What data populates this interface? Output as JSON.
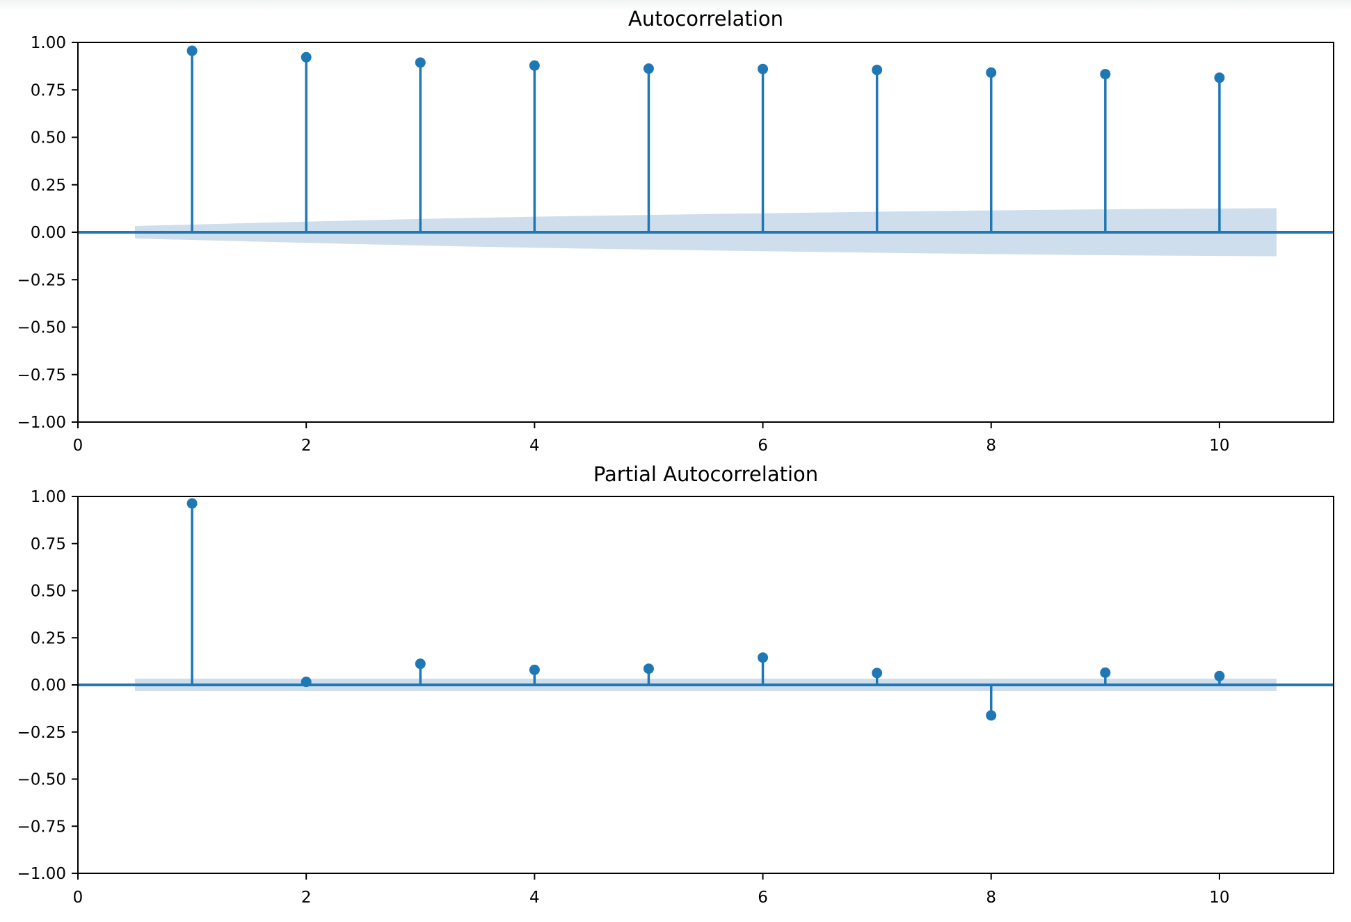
{
  "figure": {
    "background": "#ffffff",
    "kind": "matplotlib correlogram figure, two stacked subplots"
  },
  "style": {
    "stem_color": "#1f77b4",
    "dot_color": "#1f77b4",
    "zero_line_color": "#1f77b4",
    "band_color": "#cfdeed",
    "axis_color": "#000000",
    "text_color": "#000000"
  },
  "chart_data": [
    {
      "type": "stem",
      "title": "Autocorrelation",
      "xlabel": "",
      "ylabel": "",
      "x": [
        1,
        2,
        3,
        4,
        5,
        6,
        7,
        8,
        9,
        10
      ],
      "values": [
        0.956,
        0.922,
        0.894,
        0.878,
        0.862,
        0.86,
        0.855,
        0.841,
        0.833,
        0.814
      ],
      "conf_band": {
        "x": [
          0.5,
          2,
          3,
          4,
          5,
          6,
          7,
          8,
          9,
          10.5
        ],
        "upper": [
          0.033,
          0.056,
          0.07,
          0.082,
          0.091,
          0.1,
          0.108,
          0.115,
          0.121,
          0.127
        ],
        "lower": [
          -0.033,
          -0.056,
          -0.07,
          -0.082,
          -0.091,
          -0.1,
          -0.108,
          -0.115,
          -0.121,
          -0.127
        ]
      },
      "zero_line": 0.0,
      "xlim": [
        0,
        11
      ],
      "ylim": [
        -1.0,
        1.0
      ],
      "xticks": [
        0,
        2,
        4,
        6,
        8,
        10
      ],
      "xtick_labels": [
        "0",
        "2",
        "4",
        "6",
        "8",
        "10"
      ],
      "yticks": [
        1.0,
        0.75,
        0.5,
        0.25,
        0.0,
        -0.25,
        -0.5,
        -0.75,
        -1.0
      ],
      "ytick_labels": [
        "1.00",
        "0.75",
        "0.50",
        "0.25",
        "0.00",
        "−0.25",
        "−0.50",
        "−0.75",
        "−1.00"
      ],
      "grid": false,
      "legend": null
    },
    {
      "type": "stem",
      "title": "Partial Autocorrelation",
      "xlabel": "",
      "ylabel": "",
      "x": [
        1,
        2,
        3,
        4,
        5,
        6,
        7,
        8,
        9,
        10
      ],
      "values": [
        0.963,
        0.016,
        0.112,
        0.08,
        0.086,
        0.145,
        0.063,
        -0.162,
        0.065,
        0.047
      ],
      "conf_band": {
        "x": [
          0.5,
          10.5
        ],
        "upper": [
          0.033,
          0.033
        ],
        "lower": [
          -0.033,
          -0.033
        ]
      },
      "zero_line": 0.0,
      "xlim": [
        0,
        11
      ],
      "ylim": [
        -1.0,
        1.0
      ],
      "xticks": [
        0,
        2,
        4,
        6,
        8,
        10
      ],
      "xtick_labels": [
        "0",
        "2",
        "4",
        "6",
        "8",
        "10"
      ],
      "yticks": [
        1.0,
        0.75,
        0.5,
        0.25,
        0.0,
        -0.25,
        -0.5,
        -0.75,
        -1.0
      ],
      "ytick_labels": [
        "1.00",
        "0.75",
        "0.50",
        "0.25",
        "0.00",
        "−0.25",
        "−0.50",
        "−0.75",
        "−1.00"
      ],
      "grid": false,
      "legend": null
    }
  ]
}
